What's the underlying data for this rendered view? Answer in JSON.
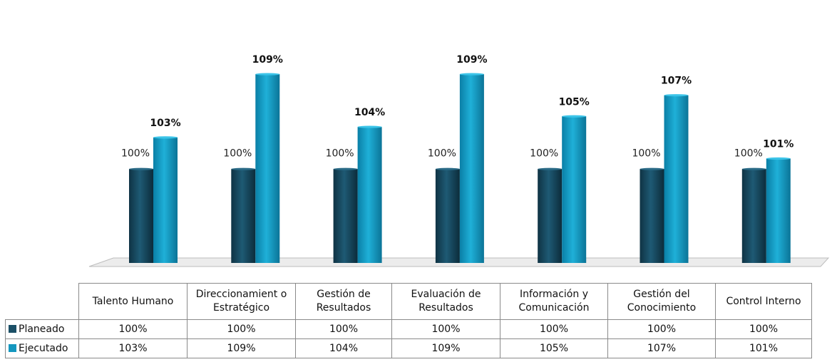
{
  "chart_data": {
    "type": "bar",
    "categories": [
      "Talento Humano",
      "Direccionamiento Estratégico",
      "Gestión de Resultados",
      "Evaluación de Resultados",
      "Información y Comunicación",
      "Gestión del Conocimiento",
      "Control Interno"
    ],
    "category_labels": [
      "Talento Humano",
      "Direccionamient o Estratégico",
      "Gestión de Resultados",
      "Evaluación de Resultados",
      "Información y Comunicación",
      "Gestión del Conocimiento",
      "Control Interno"
    ],
    "series": [
      {
        "name": "Planeado",
        "values": [
          100,
          100,
          100,
          100,
          100,
          100,
          100
        ],
        "labels": [
          "100%",
          "100%",
          "100%",
          "100%",
          "100%",
          "100%",
          "100%"
        ],
        "color": "#1b4f66"
      },
      {
        "name": "Ejecutado",
        "values": [
          103,
          109,
          104,
          109,
          105,
          107,
          101
        ],
        "labels": [
          "103%",
          "109%",
          "104%",
          "109%",
          "105%",
          "107%",
          "101%"
        ],
        "color": "#1497bf"
      }
    ],
    "legend": "data-table-below",
    "grid": false,
    "ylim": [
      90,
      110
    ]
  }
}
